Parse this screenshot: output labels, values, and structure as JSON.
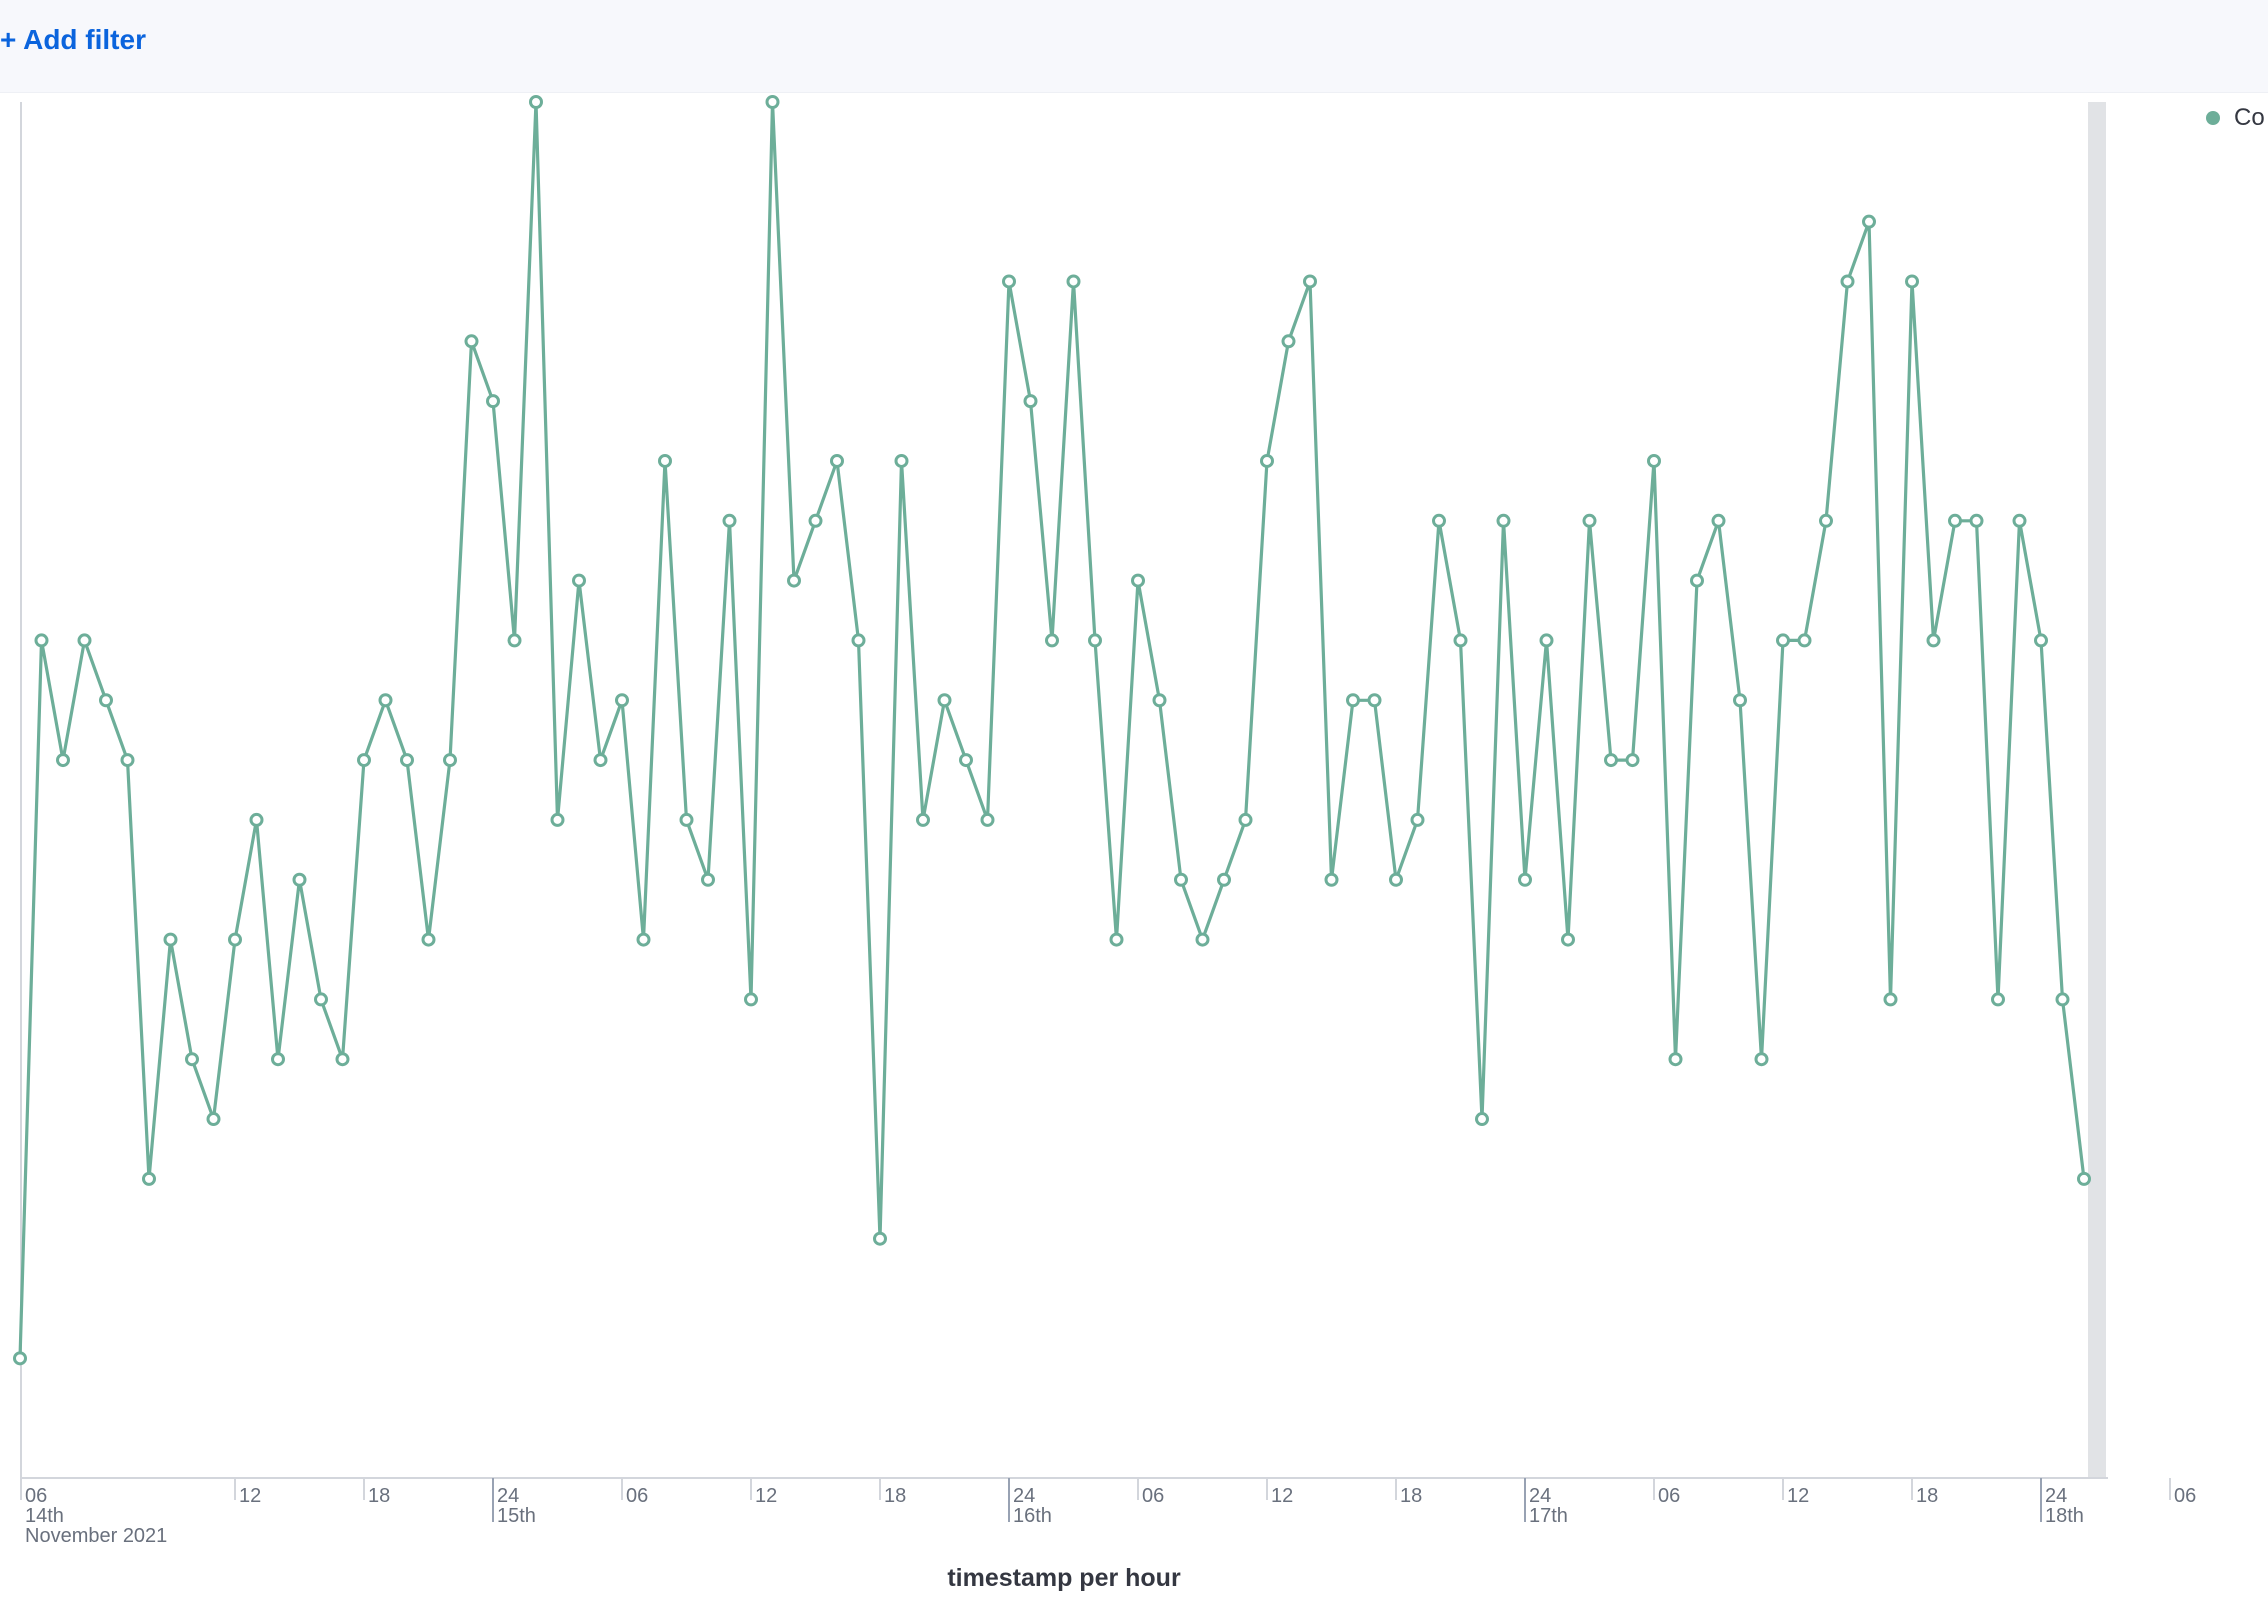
{
  "filter_bar": {
    "add_filter_label": "+ Add filter"
  },
  "legend": {
    "label": "Co"
  },
  "colors": {
    "series": "#6dae99",
    "axis": "#d3d6dc",
    "tick_text": "#69707d",
    "scrollbar": "#e1e3e6",
    "link": "#0b64dd"
  },
  "chart_data": {
    "type": "line",
    "title": "",
    "xlabel": "timestamp per hour",
    "ylabel": "",
    "grid": false,
    "legend_position": "top-right",
    "x_start": "2021-11-14T02:00",
    "x_step": "1 hour",
    "x_tick_labels": [
      {
        "hour": "06",
        "date": "14th",
        "month": "November 2021"
      },
      {
        "hour": "12"
      },
      {
        "hour": "18"
      },
      {
        "hour": "24",
        "date": "15th"
      },
      {
        "hour": "06"
      },
      {
        "hour": "12"
      },
      {
        "hour": "18"
      },
      {
        "hour": "24",
        "date": "16th"
      },
      {
        "hour": "06"
      },
      {
        "hour": "12"
      },
      {
        "hour": "18"
      },
      {
        "hour": "24",
        "date": "17th"
      },
      {
        "hour": "06"
      },
      {
        "hour": "12"
      },
      {
        "hour": "18"
      },
      {
        "hour": "24",
        "date": "18th"
      },
      {
        "hour": "06"
      }
    ],
    "ylim": [
      0,
      23
    ],
    "series": [
      {
        "values": [
          2,
          14,
          12,
          14,
          13,
          12,
          5,
          9,
          7,
          6,
          9,
          11,
          7,
          10,
          8,
          7,
          12,
          13,
          12,
          9,
          12,
          19,
          18,
          14,
          23,
          11,
          15,
          12,
          13,
          9,
          17,
          11,
          10,
          16,
          8,
          23,
          15,
          16,
          17,
          14,
          4,
          17,
          11,
          13,
          12,
          11,
          20,
          18,
          14,
          20,
          14,
          9,
          15,
          13,
          10,
          9,
          10,
          11,
          17,
          19,
          20,
          10,
          13,
          13,
          10,
          11,
          16,
          14,
          6,
          16,
          10,
          14,
          9,
          16,
          12,
          12,
          17,
          7,
          15,
          16,
          13,
          7,
          14,
          14,
          16,
          20,
          21,
          8,
          20,
          14,
          16,
          16,
          8,
          16,
          14,
          8,
          5
        ]
      }
    ]
  }
}
